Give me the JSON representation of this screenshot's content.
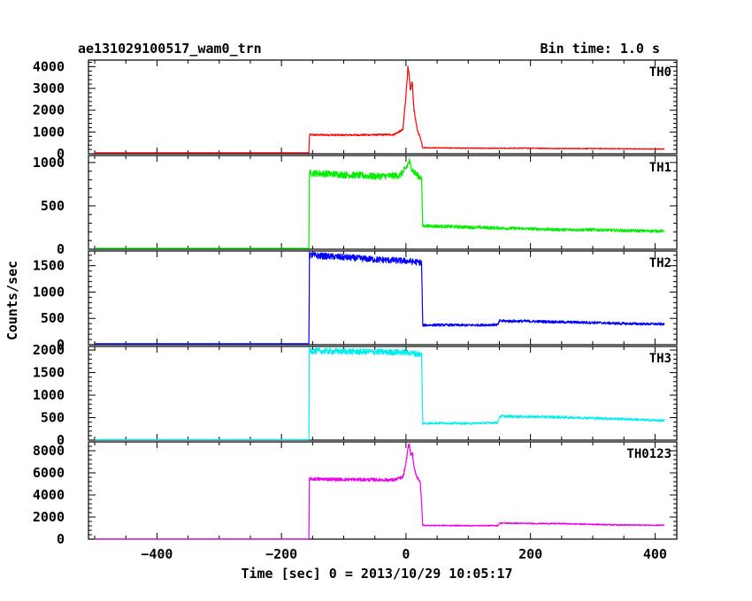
{
  "chart_data": {
    "type": "line",
    "title": "ae131029100517_wam0_trn",
    "bin_time_label": "Bin time: 1.0 s",
    "xlabel": "Time [sec] 0 = 2013/10/29 10:05:17",
    "ylabel": "Counts/sec",
    "xlim": [
      -510,
      435
    ],
    "x_ticks": [
      -400,
      -200,
      0,
      200,
      400
    ],
    "x_tick_labels": [
      "−400",
      "−200",
      "0",
      "200",
      "400"
    ],
    "grid": false,
    "panels": [
      {
        "name": "TH0",
        "color": "#ff0000",
        "ylim": [
          0,
          4300
        ],
        "y_ticks": [
          0,
          1000,
          2000,
          3000,
          4000
        ],
        "x": [
          -500,
          -156,
          -155,
          -100,
          -50,
          -20,
          -5,
          0,
          3,
          5,
          7,
          10,
          13,
          18,
          23,
          27,
          50,
          100,
          150,
          200,
          250,
          300,
          350,
          400,
          415
        ],
        "y": [
          50,
          50,
          870,
          860,
          870,
          880,
          1100,
          2700,
          3900,
          3600,
          2900,
          3300,
          2000,
          1100,
          750,
          280,
          270,
          260,
          250,
          260,
          240,
          240,
          230,
          220,
          220
        ]
      },
      {
        "name": "TH1",
        "color": "#00ee00",
        "ylim": [
          0,
          1080
        ],
        "y_ticks": [
          0,
          500,
          1000
        ],
        "x": [
          -500,
          -156,
          -155,
          -100,
          -50,
          -10,
          0,
          5,
          10,
          15,
          25,
          27,
          50,
          100,
          150,
          200,
          250,
          300,
          350,
          400,
          415
        ],
        "y": [
          10,
          10,
          880,
          860,
          840,
          850,
          930,
          1010,
          920,
          870,
          820,
          270,
          265,
          255,
          245,
          235,
          225,
          225,
          215,
          210,
          210
        ]
      },
      {
        "name": "TH2",
        "color": "#0000ff",
        "ylim": [
          0,
          1780
        ],
        "y_ticks": [
          0,
          500,
          1000,
          1500
        ],
        "x": [
          -500,
          -156,
          -155,
          -100,
          -50,
          0,
          25,
          27,
          50,
          100,
          148,
          150,
          200,
          250,
          300,
          350,
          415
        ],
        "y": [
          20,
          20,
          1700,
          1660,
          1620,
          1590,
          1560,
          370,
          375,
          370,
          380,
          450,
          445,
          430,
          420,
          400,
          390
        ]
      },
      {
        "name": "TH3",
        "color": "#00eeee",
        "ylim": [
          0,
          2080
        ],
        "y_ticks": [
          0,
          500,
          1000,
          1500,
          2000
        ],
        "x": [
          -500,
          -156,
          -155,
          -100,
          -50,
          0,
          25,
          27,
          50,
          100,
          148,
          150,
          200,
          250,
          300,
          350,
          415
        ],
        "y": [
          10,
          10,
          1980,
          1970,
          1960,
          1950,
          1900,
          370,
          380,
          370,
          390,
          530,
          520,
          510,
          490,
          470,
          430
        ]
      },
      {
        "name": "TH0123",
        "color": "#ee00ee",
        "ylim": [
          0,
          8800
        ],
        "y_ticks": [
          0,
          2000,
          4000,
          6000,
          8000
        ],
        "x": [
          -500,
          -156,
          -155,
          -100,
          -50,
          -20,
          -5,
          0,
          3,
          5,
          8,
          10,
          13,
          18,
          23,
          27,
          50,
          100,
          148,
          150,
          200,
          250,
          300,
          350,
          415
        ],
        "y": [
          20,
          20,
          5450,
          5400,
          5380,
          5350,
          5600,
          6800,
          8200,
          8600,
          7600,
          7900,
          6400,
          5600,
          5200,
          1250,
          1240,
          1220,
          1230,
          1450,
          1420,
          1400,
          1340,
          1280,
          1260
        ]
      }
    ]
  }
}
